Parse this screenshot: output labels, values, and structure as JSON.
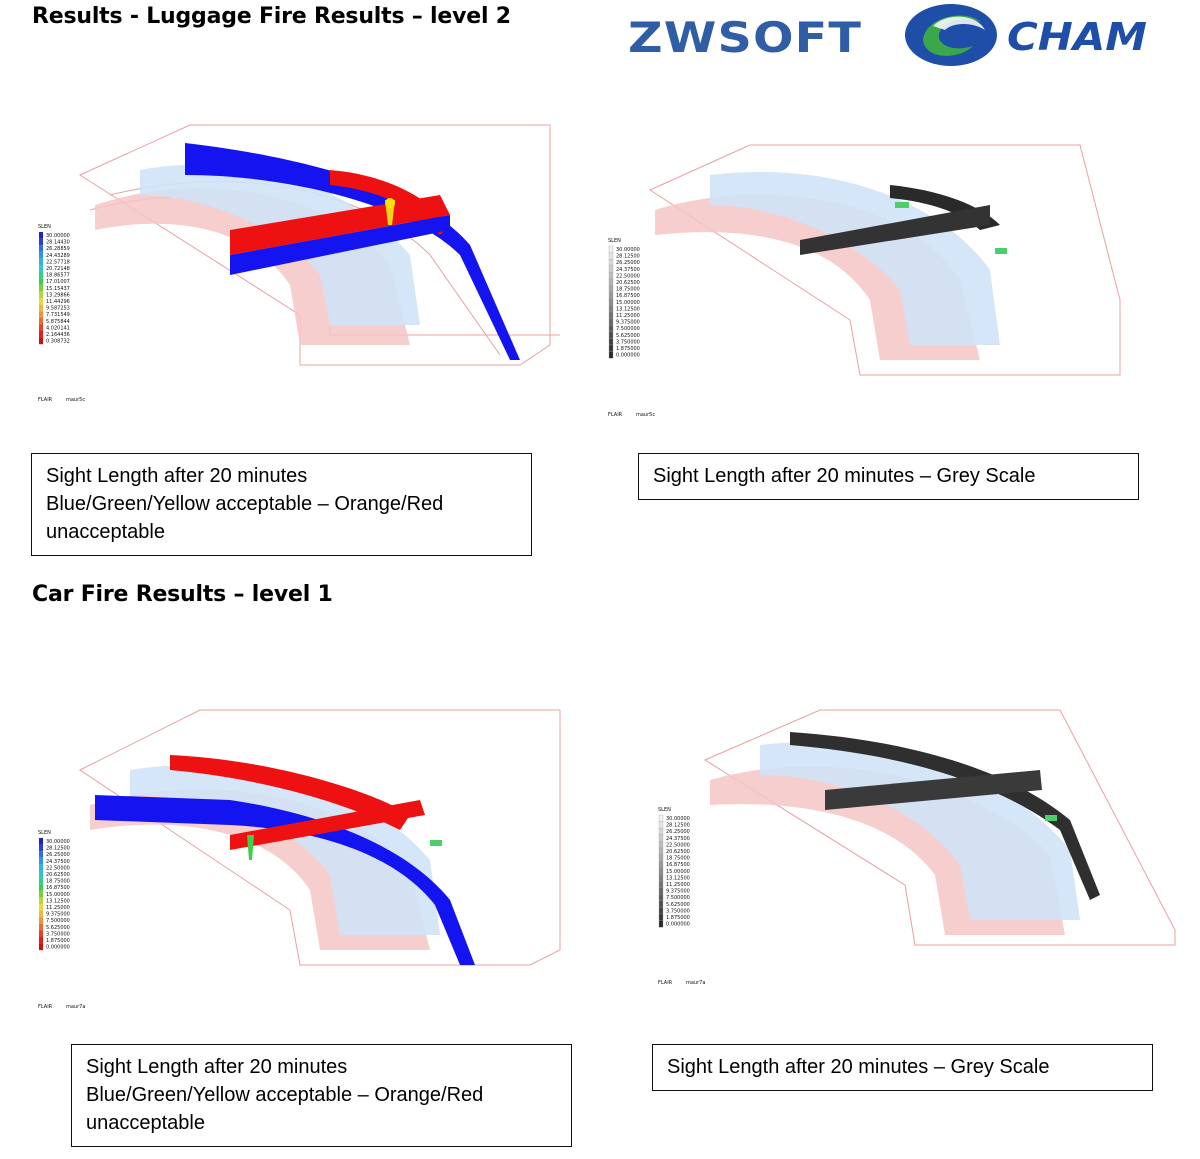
{
  "headings": {
    "luggage": "Results - Luggage Fire Results – level 2",
    "car": "Car Fire Results – level 1"
  },
  "logos": {
    "zwsoft": "ZWSOFT",
    "cham": "CHAM"
  },
  "colors": {
    "zw_blue": "#2f5ea6",
    "cham_blue": "#1f4ea8",
    "cham_green": "#3aa84a"
  },
  "captions": {
    "luggage_color": [
      "Sight Length after 20 minutes",
      "Blue/Green/Yellow acceptable – Orange/Red",
      "unacceptable"
    ],
    "luggage_grey": [
      "Sight Length after 20 minutes – Grey Scale"
    ],
    "car_color": [
      "Sight Length after 20 minutes",
      "Blue/Green/Yellow acceptable – Orange/Red",
      "unacceptable"
    ],
    "car_grey": [
      "Sight Length after 20 minutes – Grey Scale"
    ]
  },
  "figures": {
    "fig1": {
      "legend_title": "SLEN",
      "legend_values": [
        "30.00000",
        "28.14430",
        "26.28859",
        "24.43289",
        "22.57718",
        "20.72148",
        "18.86577",
        "17.01007",
        "15.15437",
        "13.29866",
        "11.44296",
        "9.587253",
        "7.731549",
        "5.875844",
        "4.020141",
        "2.164436",
        "0.308732"
      ],
      "footer_left": "FLAIR",
      "footer_right": "maur5c"
    },
    "fig2": {
      "legend_title": "SLEN",
      "legend_values": [
        "30.00000",
        "28.12500",
        "26.25000",
        "24.37500",
        "22.50000",
        "20.62500",
        "18.75000",
        "16.87500",
        "15.00000",
        "13.12500",
        "11.25000",
        "9.375000",
        "7.500000",
        "5.625000",
        "3.750000",
        "1.875000",
        "0.000000"
      ],
      "footer_left": "FLAIR",
      "footer_right": "maur5c"
    },
    "fig3": {
      "legend_title": "SLEN",
      "legend_values": [
        "30.00000",
        "28.12500",
        "26.25000",
        "24.37500",
        "22.50000",
        "20.62500",
        "18.75000",
        "16.87500",
        "15.00000",
        "13.12500",
        "11.25000",
        "9.375000",
        "7.500000",
        "5.625000",
        "3.750000",
        "1.875000",
        "0.000000"
      ],
      "footer_left": "FLAIR",
      "footer_right": "maur7a"
    },
    "fig4": {
      "legend_title": "SLEN",
      "legend_values": [
        "30.00000",
        "28.12500",
        "26.25000",
        "24.37500",
        "22.50000",
        "20.62500",
        "18.75000",
        "16.87500",
        "15.00000",
        "13.12500",
        "11.25000",
        "9.375000",
        "7.500000",
        "5.625000",
        "3.750000",
        "1.875000",
        "0.000000"
      ],
      "footer_left": "FLAIR",
      "footer_right": "maur7a"
    }
  }
}
